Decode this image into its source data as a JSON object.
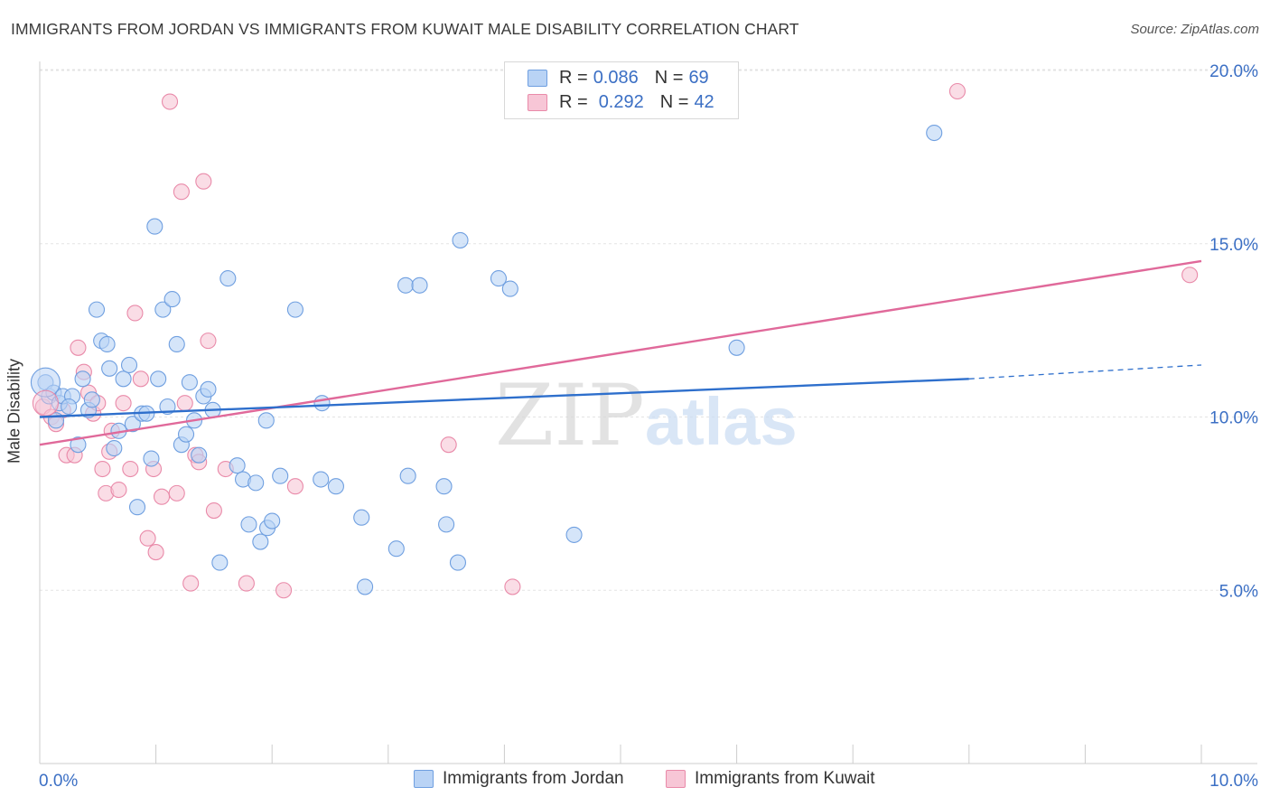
{
  "title": "IMMIGRANTS FROM JORDAN VS IMMIGRANTS FROM KUWAIT MALE DISABILITY CORRELATION CHART",
  "source": "Source: ZipAtlas.com",
  "watermark": {
    "zip": "ZIP",
    "atlas": "atlas"
  },
  "legend": {
    "jordan": {
      "r_label": "R =",
      "r_value": "0.086",
      "n_label": "N =",
      "n_value": "69"
    },
    "kuwait": {
      "r_label": "R =",
      "r_value": "0.292",
      "n_label": "N =",
      "n_value": "42"
    }
  },
  "colors": {
    "jordan_fill": "#b9d3f5",
    "jordan_stroke": "#6f9fe0",
    "jordan_line": "#2e6fcc",
    "kuwait_fill": "#f7c6d6",
    "kuwait_stroke": "#e98aa9",
    "kuwait_line": "#e0699a",
    "tick_label": "#3b6fc4",
    "grid": "#e3e3e3"
  },
  "chart_data": {
    "type": "scatter",
    "title": "IMMIGRANTS FROM JORDAN VS IMMIGRANTS FROM KUWAIT MALE DISABILITY CORRELATION CHART",
    "xlabel": "",
    "ylabel": "Male Disability",
    "xlim": [
      0,
      10
    ],
    "ylim": [
      0,
      21
    ],
    "x_tick_labels": [
      "0.0%",
      "10.0%"
    ],
    "y_ticks": [
      5,
      10,
      15,
      20
    ],
    "y_tick_labels": [
      "5.0%",
      "10.0%",
      "15.0%",
      "20.0%"
    ],
    "grid": true,
    "legend_position": "top-center",
    "series": [
      {
        "name": "Immigrants from Jordan",
        "r": 0.086,
        "n": 69,
        "trend": {
          "x": [
            0,
            8.0
          ],
          "y": [
            10.0,
            11.1
          ],
          "dashed_to": [
            10.0,
            11.5
          ]
        },
        "points": [
          [
            0.05,
            11.0
          ],
          [
            0.08,
            10.6
          ],
          [
            0.12,
            10.7
          ],
          [
            0.17,
            10.4
          ],
          [
            0.2,
            10.6
          ],
          [
            0.28,
            10.6
          ],
          [
            0.33,
            9.2
          ],
          [
            0.37,
            11.1
          ],
          [
            0.42,
            10.2
          ],
          [
            0.45,
            10.5
          ],
          [
            0.49,
            13.1
          ],
          [
            0.53,
            12.2
          ],
          [
            0.58,
            12.1
          ],
          [
            0.6,
            11.4
          ],
          [
            0.64,
            9.1
          ],
          [
            0.68,
            9.6
          ],
          [
            0.72,
            11.1
          ],
          [
            0.77,
            11.5
          ],
          [
            0.8,
            9.8
          ],
          [
            0.84,
            7.4
          ],
          [
            0.88,
            10.1
          ],
          [
            0.92,
            10.1
          ],
          [
            0.96,
            8.8
          ],
          [
            0.99,
            15.5
          ],
          [
            1.02,
            11.1
          ],
          [
            1.06,
            13.1
          ],
          [
            1.1,
            10.3
          ],
          [
            1.14,
            13.4
          ],
          [
            1.18,
            12.1
          ],
          [
            1.22,
            9.2
          ],
          [
            1.26,
            9.5
          ],
          [
            1.29,
            11.0
          ],
          [
            1.33,
            9.9
          ],
          [
            1.37,
            8.9
          ],
          [
            1.41,
            10.6
          ],
          [
            1.45,
            10.8
          ],
          [
            1.49,
            10.2
          ],
          [
            1.55,
            5.8
          ],
          [
            1.62,
            14.0
          ],
          [
            1.7,
            8.6
          ],
          [
            1.75,
            8.2
          ],
          [
            1.86,
            8.1
          ],
          [
            1.8,
            6.9
          ],
          [
            1.9,
            6.4
          ],
          [
            1.96,
            6.8
          ],
          [
            2.0,
            7.0
          ],
          [
            1.95,
            9.9
          ],
          [
            2.07,
            8.3
          ],
          [
            2.2,
            13.1
          ],
          [
            2.43,
            10.4
          ],
          [
            2.42,
            8.2
          ],
          [
            2.55,
            8.0
          ],
          [
            2.77,
            7.1
          ],
          [
            2.8,
            5.1
          ],
          [
            3.07,
            6.2
          ],
          [
            3.15,
            13.8
          ],
          [
            3.17,
            8.3
          ],
          [
            3.27,
            13.8
          ],
          [
            3.48,
            8.0
          ],
          [
            3.5,
            6.9
          ],
          [
            3.6,
            5.8
          ],
          [
            3.62,
            15.1
          ],
          [
            3.95,
            14.0
          ],
          [
            4.05,
            13.7
          ],
          [
            4.6,
            6.6
          ],
          [
            6.0,
            12.0
          ],
          [
            7.7,
            18.2
          ],
          [
            0.14,
            9.9
          ],
          [
            0.25,
            10.3
          ]
        ]
      },
      {
        "name": "Immigrants from Kuwait",
        "r": 0.292,
        "n": 42,
        "trend": {
          "x": [
            0,
            10.0
          ],
          "y": [
            9.2,
            14.5
          ]
        },
        "points": [
          [
            0.03,
            10.3
          ],
          [
            0.1,
            10.0
          ],
          [
            0.14,
            9.8
          ],
          [
            0.2,
            10.2
          ],
          [
            0.23,
            8.9
          ],
          [
            0.3,
            8.9
          ],
          [
            0.33,
            12.0
          ],
          [
            0.38,
            11.3
          ],
          [
            0.42,
            10.7
          ],
          [
            0.46,
            10.1
          ],
          [
            0.5,
            10.4
          ],
          [
            0.54,
            8.5
          ],
          [
            0.57,
            7.8
          ],
          [
            0.62,
            9.6
          ],
          [
            0.68,
            7.9
          ],
          [
            0.72,
            10.4
          ],
          [
            0.78,
            8.5
          ],
          [
            0.82,
            13.0
          ],
          [
            0.87,
            11.1
          ],
          [
            0.93,
            6.5
          ],
          [
            0.98,
            8.5
          ],
          [
            1.0,
            6.1
          ],
          [
            1.05,
            7.7
          ],
          [
            1.12,
            19.1
          ],
          [
            1.18,
            7.8
          ],
          [
            1.22,
            16.5
          ],
          [
            1.25,
            10.4
          ],
          [
            1.3,
            5.2
          ],
          [
            1.34,
            8.9
          ],
          [
            1.37,
            8.7
          ],
          [
            1.41,
            16.8
          ],
          [
            1.45,
            12.2
          ],
          [
            1.5,
            7.3
          ],
          [
            1.6,
            8.5
          ],
          [
            1.78,
            5.2
          ],
          [
            2.1,
            5.0
          ],
          [
            2.2,
            8.0
          ],
          [
            3.52,
            9.2
          ],
          [
            4.07,
            5.1
          ],
          [
            7.9,
            19.4
          ],
          [
            9.9,
            14.1
          ],
          [
            0.6,
            9.0
          ]
        ]
      }
    ]
  },
  "bottom_legend": {
    "jordan_label": "Immigrants from Jordan",
    "kuwait_label": "Immigrants from Kuwait"
  }
}
